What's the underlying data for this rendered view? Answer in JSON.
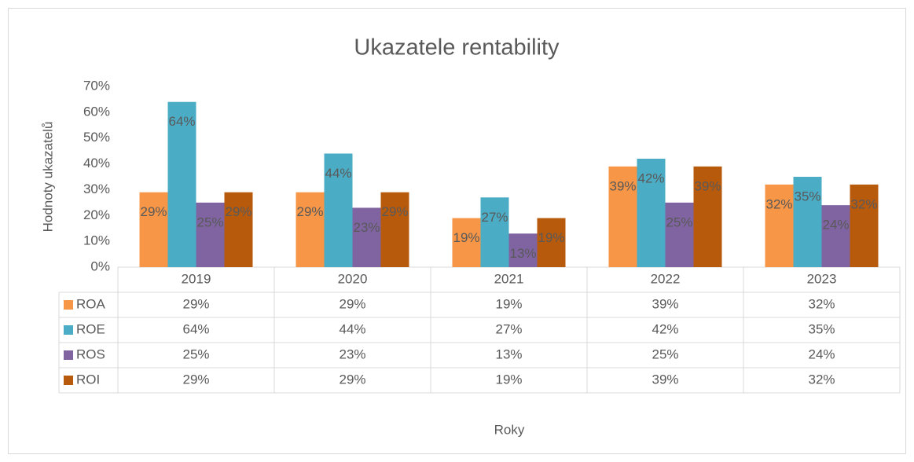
{
  "chart_data": {
    "type": "bar",
    "title": "Ukazatele rentability",
    "x_label": "Roky",
    "y_label": "Hodnoty ukazatelů",
    "categories": [
      "2019",
      "2020",
      "2021",
      "2022",
      "2023"
    ],
    "series": [
      {
        "name": "ROA",
        "color": "#f79646",
        "values": [
          29,
          29,
          19,
          39,
          32
        ],
        "value_labels": [
          "29%",
          "29%",
          "19%",
          "39%",
          "32%"
        ]
      },
      {
        "name": "ROE",
        "color": "#4bacc6",
        "values": [
          64,
          44,
          27,
          42,
          35
        ],
        "value_labels": [
          "64%",
          "44%",
          "27%",
          "42%",
          "35%"
        ]
      },
      {
        "name": "ROS",
        "color": "#8064a2",
        "values": [
          25,
          23,
          13,
          25,
          24
        ],
        "value_labels": [
          "25%",
          "23%",
          "13%",
          "25%",
          "24%"
        ]
      },
      {
        "name": "ROI",
        "color": "#b85a0c",
        "values": [
          29,
          29,
          19,
          39,
          32
        ],
        "value_labels": [
          "29%",
          "29%",
          "19%",
          "39%",
          "32%"
        ]
      }
    ],
    "ylim": [
      0,
      70
    ],
    "yticks": [
      {
        "value": 0,
        "label": "0%"
      },
      {
        "value": 10,
        "label": "10%"
      },
      {
        "value": 20,
        "label": "20%"
      },
      {
        "value": 30,
        "label": "30%"
      },
      {
        "value": 40,
        "label": "40%"
      },
      {
        "value": 50,
        "label": "50%"
      },
      {
        "value": 60,
        "label": "60%"
      },
      {
        "value": 70,
        "label": "70%"
      }
    ],
    "grid": false
  }
}
